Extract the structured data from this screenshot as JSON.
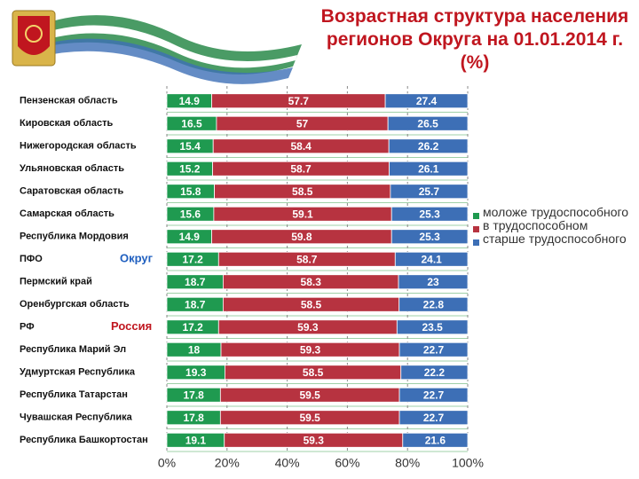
{
  "chart_data": {
    "type": "stacked-bar-horizontal",
    "title": "Возрастная структура населения регионов Округа на 01.01.2014 г. (%)",
    "categories": [
      "Пензенская область",
      "Кировская область",
      "Нижегородская область",
      "Ульяновская область",
      "Саратовская область",
      "Самарская область",
      "Республика Мордовия",
      "ПФО",
      "Пермский край",
      "Оренбургская область",
      "РФ",
      "Республика Марий Эл",
      "Удмуртская Республика",
      "Республика Татарстан",
      "Чувашская Республика",
      "Республика Башкортостан"
    ],
    "annotations": [
      "Округ",
      "Россия"
    ],
    "series": [
      {
        "name": "моложе трудоспособного",
        "color": "#1f9a50",
        "values": [
          14.9,
          16.5,
          15.4,
          15.2,
          15.8,
          15.6,
          14.9,
          17.2,
          18.7,
          18.7,
          17.2,
          18.0,
          19.3,
          17.8,
          17.8,
          19.1
        ]
      },
      {
        "name": "в трудоспособном",
        "color": "#b73340",
        "values": [
          57.7,
          57.0,
          58.4,
          58.7,
          58.5,
          59.1,
          59.8,
          58.7,
          58.3,
          58.5,
          59.3,
          59.3,
          58.5,
          59.5,
          59.5,
          59.3
        ]
      },
      {
        "name": "старше трудоспособного",
        "color": "#3d6fb6",
        "values": [
          27.4,
          26.5,
          26.2,
          26.1,
          25.7,
          25.3,
          25.3,
          24.1,
          23.0,
          22.8,
          23.5,
          22.7,
          22.2,
          22.7,
          22.7,
          21.6
        ]
      }
    ],
    "xlim": [
      0,
      100
    ],
    "xticks": [
      {
        "value": 0,
        "label": "0%"
      },
      {
        "value": 20,
        "label": "20%"
      },
      {
        "value": 40,
        "label": "40%"
      },
      {
        "value": 60,
        "label": "60%"
      },
      {
        "value": 80,
        "label": "80%"
      },
      {
        "value": 100,
        "label": "100%"
      }
    ],
    "grid": true
  }
}
